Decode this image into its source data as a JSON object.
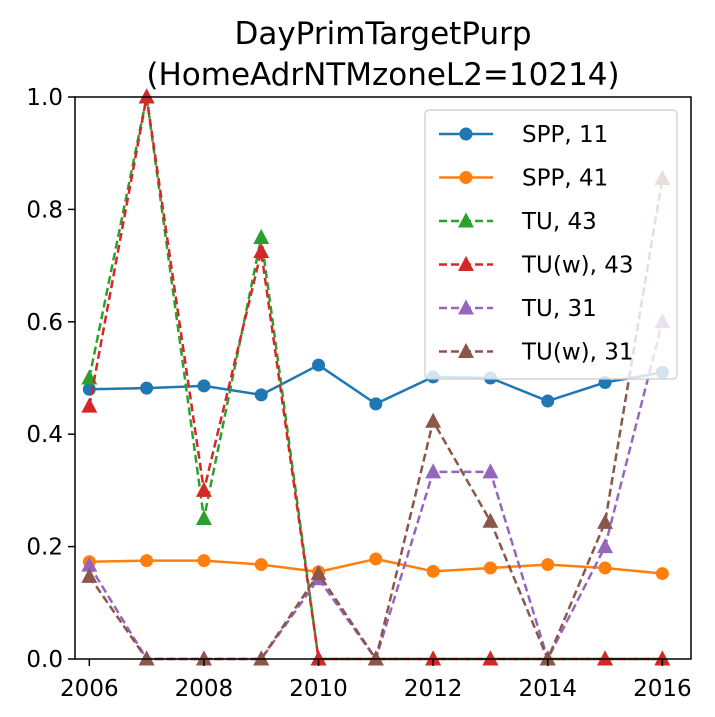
{
  "chart_data": {
    "type": "line",
    "title_lines": [
      "DayPrimTargetPurp",
      "(HomeAdrNTMzoneL2=10214)"
    ],
    "xlabel": "",
    "ylabel": "",
    "xlim": [
      2005.75,
      2016.5
    ],
    "ylim": [
      0.0,
      1.0
    ],
    "x_ticks": [
      2006,
      2008,
      2010,
      2012,
      2014,
      2016
    ],
    "y_ticks": [
      0.0,
      0.2,
      0.4,
      0.6,
      0.8,
      1.0
    ],
    "x_tick_labels": [
      "2006",
      "2008",
      "2010",
      "2012",
      "2014",
      "2016"
    ],
    "y_tick_labels": [
      "0.0",
      "0.2",
      "0.4",
      "0.6",
      "0.8",
      "1.0"
    ],
    "grid": false,
    "legend_position": "top-right",
    "x": [
      2006,
      2007,
      2008,
      2009,
      2010,
      2011,
      2012,
      2013,
      2014,
      2015,
      2016
    ],
    "series": [
      {
        "name": "SPP, 11",
        "color": "#1f77b4",
        "marker": "circle",
        "dashed": false,
        "values": [
          0.48,
          0.482,
          0.486,
          0.47,
          0.523,
          0.454,
          0.502,
          0.5,
          0.459,
          0.492,
          0.51
        ]
      },
      {
        "name": "SPP, 41",
        "color": "#ff7f0e",
        "marker": "circle",
        "dashed": false,
        "values": [
          0.173,
          0.175,
          0.175,
          0.168,
          0.155,
          0.178,
          0.156,
          0.162,
          0.168,
          0.162,
          0.152
        ]
      },
      {
        "name": "TU, 43",
        "color": "#2ca02c",
        "marker": "triangle",
        "dashed": true,
        "values": [
          0.5,
          1.0,
          0.25,
          0.75,
          0.0,
          0.0,
          0.0,
          0.0,
          0.0,
          0.0,
          0.0
        ]
      },
      {
        "name": "TU(w), 43",
        "color": "#d62728",
        "marker": "triangle",
        "dashed": true,
        "values": [
          0.45,
          1.0,
          0.3,
          0.725,
          0.0,
          0.0,
          0.0,
          0.0,
          0.0,
          0.0,
          0.0
        ]
      },
      {
        "name": "TU, 31",
        "color": "#9467bd",
        "marker": "triangle",
        "dashed": true,
        "values": [
          0.167,
          0.0,
          0.0,
          0.0,
          0.143,
          0.0,
          0.333,
          0.333,
          0.0,
          0.2,
          0.6
        ]
      },
      {
        "name": "TU(w), 31",
        "color": "#8c564b",
        "marker": "triangle",
        "dashed": true,
        "values": [
          0.147,
          0.0,
          0.0,
          0.0,
          0.152,
          0.0,
          0.423,
          0.245,
          0.0,
          0.243,
          0.855
        ]
      }
    ]
  }
}
